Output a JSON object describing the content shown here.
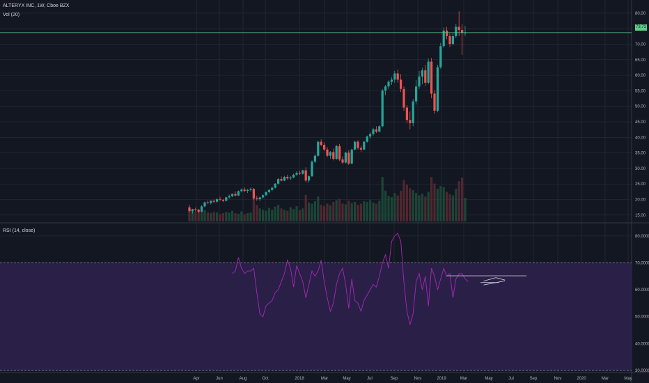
{
  "header": {
    "title": "ALTERYX INC, 1W, Cboe BZX",
    "volume_label": "Vol (20)",
    "rsi_label": "RSI (14, close)"
  },
  "last_price_badge": "73.73",
  "colors": {
    "up": "#26a69a",
    "down": "#ef5350",
    "rsi": "#9c27b0",
    "rsi_band": "#2a1f47",
    "grid": "#2a2e39",
    "price_line": "#5fcf8a"
  },
  "chart_data": [
    {
      "type": "candlestick",
      "title": "ALTERYX INC, 1W, Cboe BZX",
      "y_ticks": [
        "15.00",
        "20.00",
        "25.00",
        "30.00",
        "35.00",
        "40.00",
        "45.00",
        "50.00",
        "55.00",
        "60.00",
        "65.00",
        "70.00",
        "75.00",
        "80.00"
      ],
      "ylim": [
        12.5,
        82
      ],
      "x_ticks": [
        "Apr",
        "Jun",
        "Aug",
        "Oct",
        "2018",
        "Mar",
        "May",
        "Jul",
        "Sep",
        "Nov",
        "2019",
        "Mar",
        "May",
        "Jul",
        "Sep",
        "Nov",
        "2020",
        "Mar",
        "May"
      ],
      "current_price": 73.73,
      "ohlc": [
        [
          17.5,
          18.3,
          15.8,
          16.3
        ],
        [
          16.3,
          17.0,
          15.5,
          16.9
        ],
        [
          16.9,
          17.4,
          16.2,
          16.7
        ],
        [
          16.7,
          17.0,
          15.7,
          16.1
        ],
        [
          16.1,
          18.2,
          16.0,
          17.8
        ],
        [
          17.8,
          19.4,
          17.5,
          19.1
        ],
        [
          19.1,
          19.7,
          18.5,
          18.9
        ],
        [
          18.9,
          19.8,
          18.4,
          19.6
        ],
        [
          19.6,
          20.0,
          18.8,
          19.3
        ],
        [
          19.3,
          20.4,
          19.0,
          20.1
        ],
        [
          20.1,
          20.9,
          19.6,
          19.9
        ],
        [
          19.9,
          20.2,
          19.2,
          19.6
        ],
        [
          19.6,
          20.9,
          19.4,
          20.7
        ],
        [
          20.7,
          21.6,
          20.3,
          21.1
        ],
        [
          21.1,
          22.0,
          20.8,
          21.8
        ],
        [
          21.8,
          22.6,
          21.0,
          21.3
        ],
        [
          21.3,
          22.9,
          21.1,
          22.7
        ],
        [
          22.7,
          23.6,
          22.3,
          23.2
        ],
        [
          23.2,
          23.9,
          22.4,
          22.8
        ],
        [
          22.8,
          23.4,
          22.1,
          23.1
        ],
        [
          23.1,
          23.9,
          22.6,
          23.4
        ],
        [
          23.4,
          23.7,
          19.9,
          20.4
        ],
        [
          20.4,
          21.2,
          19.6,
          20.1
        ],
        [
          20.1,
          20.9,
          19.5,
          20.7
        ],
        [
          20.7,
          21.7,
          20.3,
          21.4
        ],
        [
          21.4,
          22.6,
          21.1,
          22.4
        ],
        [
          22.4,
          23.4,
          22.0,
          23.1
        ],
        [
          23.1,
          24.1,
          22.7,
          23.8
        ],
        [
          23.8,
          25.3,
          23.6,
          25.1
        ],
        [
          25.1,
          26.9,
          24.8,
          26.6
        ],
        [
          26.6,
          27.4,
          25.8,
          26.1
        ],
        [
          26.1,
          27.6,
          25.9,
          27.3
        ],
        [
          27.3,
          28.0,
          26.4,
          26.8
        ],
        [
          26.8,
          27.5,
          26.2,
          27.1
        ],
        [
          27.1,
          28.3,
          26.9,
          28.0
        ],
        [
          28.0,
          29.1,
          27.6,
          28.6
        ],
        [
          28.6,
          29.3,
          27.9,
          28.3
        ],
        [
          28.3,
          29.6,
          28.0,
          29.4
        ],
        [
          29.4,
          30.4,
          25.6,
          26.1
        ],
        [
          26.1,
          27.8,
          25.4,
          27.5
        ],
        [
          27.5,
          32.6,
          27.3,
          32.2
        ],
        [
          32.2,
          34.6,
          31.8,
          34.1
        ],
        [
          34.1,
          38.9,
          33.8,
          38.6
        ],
        [
          38.6,
          39.4,
          37.1,
          37.6
        ],
        [
          37.6,
          38.4,
          35.6,
          36.1
        ],
        [
          36.1,
          36.9,
          33.6,
          34.1
        ],
        [
          34.1,
          35.6,
          33.1,
          35.3
        ],
        [
          35.3,
          36.4,
          32.6,
          33.1
        ],
        [
          33.1,
          37.6,
          32.8,
          37.2
        ],
        [
          37.2,
          37.9,
          32.4,
          32.9
        ],
        [
          32.9,
          33.9,
          31.4,
          31.9
        ],
        [
          31.9,
          35.4,
          31.6,
          35.1
        ],
        [
          35.1,
          35.9,
          31.1,
          31.6
        ],
        [
          31.6,
          36.4,
          31.4,
          36.1
        ],
        [
          36.1,
          38.9,
          35.8,
          38.6
        ],
        [
          38.6,
          39.1,
          36.1,
          36.6
        ],
        [
          36.6,
          37.3,
          35.3,
          36.1
        ],
        [
          36.1,
          38.9,
          35.9,
          38.6
        ],
        [
          38.6,
          40.6,
          38.3,
          40.3
        ],
        [
          40.3,
          41.6,
          39.6,
          41.1
        ],
        [
          41.1,
          43.1,
          40.6,
          42.6
        ],
        [
          42.6,
          43.6,
          41.4,
          41.9
        ],
        [
          41.9,
          43.9,
          41.6,
          43.6
        ],
        [
          43.6,
          55.6,
          43.3,
          55.1
        ],
        [
          55.1,
          56.9,
          53.6,
          56.4
        ],
        [
          56.4,
          58.4,
          55.6,
          57.9
        ],
        [
          57.9,
          59.4,
          56.9,
          58.6
        ],
        [
          58.6,
          61.4,
          57.6,
          60.6
        ],
        [
          60.6,
          61.9,
          57.6,
          58.6
        ],
        [
          58.6,
          60.4,
          54.6,
          55.6
        ],
        [
          55.6,
          56.4,
          48.6,
          49.6
        ],
        [
          49.6,
          50.4,
          44.6,
          45.6
        ],
        [
          45.6,
          48.4,
          42.6,
          44.6
        ],
        [
          44.6,
          52.4,
          43.6,
          51.6
        ],
        [
          51.6,
          58.4,
          50.6,
          56.4
        ],
        [
          56.4,
          61.4,
          55.6,
          59.6
        ],
        [
          59.6,
          62.4,
          57.1,
          61.6
        ],
        [
          61.6,
          63.4,
          56.6,
          57.6
        ],
        [
          57.6,
          65.4,
          57.1,
          64.4
        ],
        [
          64.4,
          65.6,
          52.6,
          54.1
        ],
        [
          54.1,
          55.1,
          47.6,
          48.6
        ],
        [
          48.6,
          63.4,
          48.1,
          62.6
        ],
        [
          62.6,
          70.4,
          62.1,
          69.4
        ],
        [
          69.4,
          75.4,
          68.9,
          74.4
        ],
        [
          74.4,
          75.6,
          71.6,
          72.6
        ],
        [
          72.6,
          73.4,
          69.1,
          70.1
        ],
        [
          70.1,
          73.6,
          69.6,
          72.6
        ],
        [
          72.6,
          76.6,
          71.9,
          75.6
        ],
        [
          75.6,
          80.6,
          72.6,
          74.6
        ],
        [
          74.6,
          76.4,
          66.6,
          73.6
        ],
        [
          73.6,
          75.9,
          72.6,
          73.7
        ]
      ],
      "volume": [
        0.22,
        0.18,
        0.16,
        0.2,
        0.17,
        0.19,
        0.15,
        0.14,
        0.16,
        0.15,
        0.12,
        0.14,
        0.16,
        0.15,
        0.18,
        0.14,
        0.13,
        0.17,
        0.12,
        0.14,
        0.15,
        0.55,
        0.28,
        0.22,
        0.2,
        0.18,
        0.23,
        0.2,
        0.25,
        0.28,
        0.22,
        0.2,
        0.18,
        0.24,
        0.21,
        0.26,
        0.19,
        0.22,
        0.45,
        0.32,
        0.3,
        0.34,
        0.42,
        0.28,
        0.26,
        0.3,
        0.27,
        0.33,
        0.36,
        0.38,
        0.3,
        0.29,
        0.35,
        0.31,
        0.33,
        0.28,
        0.3,
        0.34,
        0.33,
        0.36,
        0.32,
        0.3,
        0.35,
        0.75,
        0.52,
        0.43,
        0.41,
        0.48,
        0.44,
        0.52,
        0.7,
        0.62,
        0.56,
        0.53,
        0.48,
        0.44,
        0.47,
        0.42,
        0.5,
        0.75,
        0.64,
        0.55,
        0.6,
        0.58,
        0.5,
        0.46,
        0.44,
        0.55,
        0.68,
        0.74,
        0.4
      ]
    },
    {
      "type": "line",
      "title": "RSI (14, close)",
      "y_ticks": [
        "30.0000",
        "40.0000",
        "50.0000",
        "60.0000",
        "70.0000",
        "80.0000"
      ],
      "ylim": [
        29.2,
        82.3
      ],
      "band": [
        30,
        70
      ],
      "start_index": 14,
      "values": [
        66,
        67,
        72,
        68,
        66,
        67,
        67,
        68,
        59,
        51,
        50,
        54,
        55,
        56,
        59,
        60,
        63,
        66,
        71,
        68,
        61,
        69,
        66,
        63,
        57,
        62,
        67,
        65,
        67,
        71,
        63,
        57,
        52,
        55,
        62,
        66,
        68,
        62,
        53,
        64,
        56,
        55,
        52,
        56,
        58,
        60,
        62,
        61,
        65,
        70,
        73,
        68,
        78,
        80,
        81,
        78,
        63,
        52,
        47,
        51,
        63,
        66,
        60,
        65,
        54,
        68,
        65,
        60,
        64,
        68,
        65,
        66,
        57,
        64,
        66,
        66,
        64,
        63
      ],
      "trend_lines": [
        {
          "from": [
            84,
            65.2
          ],
          "to": [
            110,
            65.2
          ]
        },
        {
          "from": [
            95,
            62.7
          ],
          "to": [
            101,
            62.7
          ]
        },
        {
          "from": [
            96,
            63.2
          ],
          "to": [
            100,
            64.5
          ]
        },
        {
          "from": [
            100,
            64.5
          ],
          "to": [
            103,
            63.6
          ]
        },
        {
          "from": [
            96,
            61.8
          ],
          "to": [
            103,
            63.3
          ]
        }
      ]
    }
  ]
}
